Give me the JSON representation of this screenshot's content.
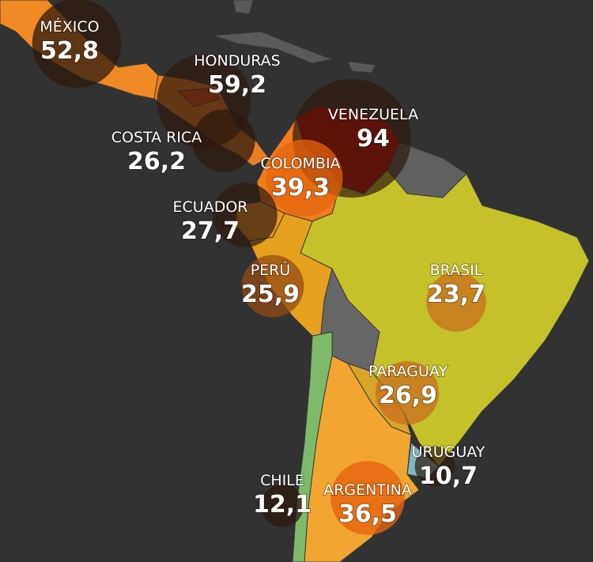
{
  "countries": [
    {
      "name": "MÉXICO",
      "value": 52.8,
      "value_label": "52,8"
    },
    {
      "name": "HONDURAS",
      "value": 59.2,
      "value_label": "59,2"
    },
    {
      "name": "COSTA RICA",
      "value": 26.2,
      "value_label": "26,2"
    },
    {
      "name": "VENEZUELA",
      "value": 94,
      "value_label": "94"
    },
    {
      "name": "COLOMBIA",
      "value": 39.3,
      "value_label": "39,3"
    },
    {
      "name": "ECUADOR",
      "value": 27.7,
      "value_label": "27,7"
    },
    {
      "name": "PERÚ",
      "value": 25.9,
      "value_label": "25,9"
    },
    {
      "name": "BRASIL",
      "value": 23.7,
      "value_label": "23,7"
    },
    {
      "name": "PARAGUAY",
      "value": 26.9,
      "value_label": "26,9"
    },
    {
      "name": "URUGUAY",
      "value": 10.7,
      "value_label": "10,7"
    },
    {
      "name": "CHILE",
      "value": 12.1,
      "value_label": "12,1"
    },
    {
      "name": "ARGENTINA",
      "value": 36.5,
      "value_label": "36,5"
    }
  ]
}
